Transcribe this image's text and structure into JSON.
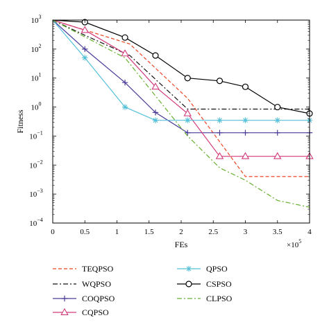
{
  "chart_data": {
    "type": "line",
    "title": "",
    "xlabel": "FEs",
    "ylabel": "Fitness",
    "x_multiplier_label": "×10",
    "x_multiplier_exp": "5",
    "x_scale_factor": 100000,
    "xlim": [
      0,
      400000
    ],
    "ylim": [
      0.0001,
      1000
    ],
    "y_scale": "log",
    "grid": false,
    "legend_placement": "bottom",
    "x_ticks": [
      {
        "value": 0,
        "label": "0"
      },
      {
        "value": 50000,
        "label": "0.5"
      },
      {
        "value": 100000,
        "label": "1"
      },
      {
        "value": 150000,
        "label": "1.5"
      },
      {
        "value": 200000,
        "label": "2"
      },
      {
        "value": 250000,
        "label": "2.5"
      },
      {
        "value": 300000,
        "label": "3"
      },
      {
        "value": 350000,
        "label": "3.5"
      },
      {
        "value": 400000,
        "label": "4"
      }
    ],
    "y_ticks": [
      {
        "value": 0.0001,
        "base": "10",
        "exp": "−4"
      },
      {
        "value": 0.001,
        "base": "10",
        "exp": "−3"
      },
      {
        "value": 0.01,
        "base": "10",
        "exp": "−2"
      },
      {
        "value": 0.1,
        "base": "10",
        "exp": "−1"
      },
      {
        "value": 1,
        "base": "10",
        "exp": "0"
      },
      {
        "value": 10,
        "base": "10",
        "exp": "1"
      },
      {
        "value": 100,
        "base": "10",
        "exp": "2"
      },
      {
        "value": 1000,
        "base": "10",
        "exp": "3"
      }
    ],
    "series": [
      {
        "name": "TEQPSO",
        "color": "#ee4422",
        "dash": "5,3",
        "marker": "none",
        "points": [
          [
            0,
            1000
          ],
          [
            120000,
            150
          ],
          [
            210000,
            2
          ],
          [
            300000,
            0.004
          ],
          [
            400000,
            0.004
          ]
        ]
      },
      {
        "name": "WQPSO",
        "color": "#111111",
        "dash": "7,3,2,3",
        "marker": "none",
        "points": [
          [
            0,
            1000
          ],
          [
            50000,
            300
          ],
          [
            120000,
            60
          ],
          [
            210000,
            0.85
          ],
          [
            400000,
            0.85
          ]
        ]
      },
      {
        "name": "COQPSO",
        "color": "#4a3a9a",
        "dash": "",
        "marker": "plus",
        "points": [
          [
            0,
            1000
          ],
          [
            50000,
            100
          ],
          [
            112500,
            7
          ],
          [
            160000,
            0.65
          ],
          [
            210000,
            0.13
          ],
          [
            260000,
            0.13
          ],
          [
            300000,
            0.13
          ],
          [
            350000,
            0.13
          ],
          [
            400000,
            0.13
          ]
        ]
      },
      {
        "name": "CQPSO",
        "color": "#d13a7a",
        "dash": "",
        "marker": "triangle",
        "points": [
          [
            0,
            1000
          ],
          [
            50000,
            450
          ],
          [
            112500,
            70
          ],
          [
            160000,
            5
          ],
          [
            210000,
            0.6
          ],
          [
            260000,
            0.02
          ],
          [
            300000,
            0.02
          ],
          [
            350000,
            0.02
          ],
          [
            400000,
            0.02
          ]
        ]
      },
      {
        "name": "QPSO",
        "color": "#55c0d8",
        "dash": "",
        "marker": "asterisk",
        "points": [
          [
            0,
            1000
          ],
          [
            50000,
            50
          ],
          [
            112500,
            1
          ],
          [
            160000,
            0.35
          ],
          [
            210000,
            0.35
          ],
          [
            260000,
            0.35
          ],
          [
            300000,
            0.35
          ],
          [
            350000,
            0.35
          ],
          [
            400000,
            0.35
          ]
        ]
      },
      {
        "name": "CSPSO",
        "color": "#000000",
        "dash": "",
        "marker": "circle",
        "points": [
          [
            0,
            1000
          ],
          [
            50000,
            850
          ],
          [
            112500,
            250
          ],
          [
            160000,
            60
          ],
          [
            210000,
            10
          ],
          [
            260000,
            8
          ],
          [
            300000,
            5
          ],
          [
            350000,
            1
          ],
          [
            400000,
            0.6
          ]
        ]
      },
      {
        "name": "CLPSO",
        "color": "#66b030",
        "dash": "7,3,2,3",
        "marker": "none",
        "points": [
          [
            0,
            1000
          ],
          [
            112500,
            50
          ],
          [
            210000,
            0.1
          ],
          [
            260000,
            0.008
          ],
          [
            300000,
            0.003
          ],
          [
            350000,
            0.0006
          ],
          [
            400000,
            0.00035
          ]
        ]
      }
    ]
  }
}
